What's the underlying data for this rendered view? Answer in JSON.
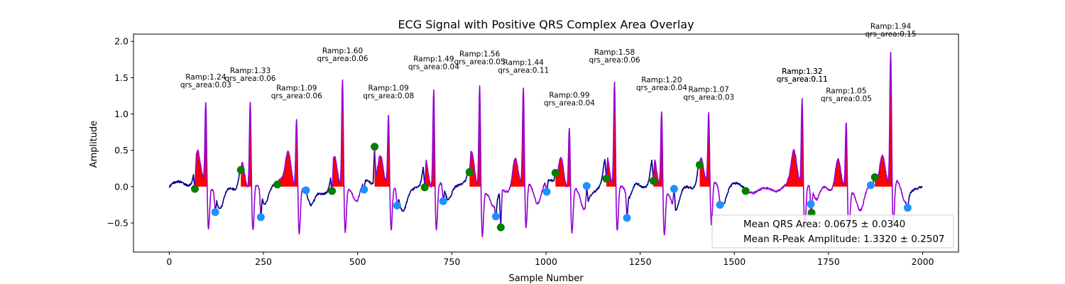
{
  "chart_data": {
    "type": "line",
    "title": "ECG Signal with Positive QRS Complex Area Overlay",
    "xlabel": "Sample Number",
    "ylabel": "Amplitude",
    "xlim": [
      -95,
      2095
    ],
    "ylim": [
      -0.9,
      2.1
    ],
    "x_ticks": [
      0,
      250,
      500,
      750,
      1000,
      1250,
      1500,
      1750,
      2000
    ],
    "y_ticks": [
      -0.5,
      0.0,
      0.5,
      1.0,
      1.5,
      2.0
    ],
    "x_tick_labels": [
      "0",
      "250",
      "500",
      "750",
      "1000",
      "1250",
      "1500",
      "1750",
      "2000"
    ],
    "y_tick_labels": [
      "−0.5",
      "0.0",
      "0.5",
      "1.0",
      "1.5",
      "2.0"
    ],
    "grid": false,
    "colors": {
      "baseline": "#00008b",
      "qrs_segment": "#9400d3",
      "qrs_area": "#ff0000",
      "onset_marker": "#008000",
      "offset_marker": "#1e90ff"
    },
    "series": [
      {
        "name": "ECG baseline",
        "color": "#00008b"
      },
      {
        "name": "QRS segment",
        "color": "#9400d3"
      }
    ],
    "beats": [
      {
        "onset": 68,
        "r_peak": 97,
        "offset": 122,
        "onset_y": -0.03,
        "r_amp": 1.24,
        "offset_y": -0.35,
        "label_ramp": "Ramp:1.24",
        "label_area": "qrs_area:0.03"
      },
      {
        "onset": 190,
        "r_peak": 215,
        "offset": 243,
        "onset_y": 0.23,
        "r_amp": 1.33,
        "offset_y": -0.42,
        "label_ramp": "Ramp:1.33",
        "label_area": "qrs_area:0.06"
      },
      {
        "onset": 287,
        "r_peak": 338,
        "offset": 363,
        "onset_y": 0.03,
        "r_amp": 1.09,
        "offset_y": -0.05,
        "label_ramp": "Ramp:1.09",
        "label_area": "qrs_area:0.06"
      },
      {
        "onset": 432,
        "r_peak": 460,
        "offset": 517,
        "onset_y": -0.06,
        "r_amp": 1.6,
        "offset_y": -0.04,
        "label_ramp": "Ramp:1.60",
        "label_area": "qrs_area:0.06"
      },
      {
        "onset": 545,
        "r_peak": 582,
        "offset": 605,
        "onset_y": 0.55,
        "r_amp": 1.09,
        "offset_y": -0.26,
        "label_ramp": "Ramp:1.09",
        "label_area": "qrs_area:0.08"
      },
      {
        "onset": 678,
        "r_peak": 702,
        "offset": 727,
        "onset_y": -0.01,
        "r_amp": 1.49,
        "offset_y": -0.2,
        "label_ramp": "Ramp:1.49",
        "label_area": "qrs_area:0.04"
      },
      {
        "onset": 797,
        "r_peak": 824,
        "offset": 867,
        "onset_y": 0.2,
        "r_amp": 1.56,
        "offset_y": -0.41,
        "label_ramp": "Ramp:1.56",
        "label_area": "qrs_area:0.05"
      },
      {
        "onset": 880,
        "r_peak": 940,
        "offset": 1002,
        "onset_y": -0.56,
        "r_amp": 1.44,
        "offset_y": -0.07,
        "label_ramp": "Ramp:1.44",
        "label_area": "qrs_area:0.11"
      },
      {
        "onset": 1025,
        "r_peak": 1062,
        "offset": 1108,
        "onset_y": 0.19,
        "r_amp": 0.99,
        "offset_y": 0.01,
        "label_ramp": "Ramp:0.99",
        "label_area": "qrs_area:0.04"
      },
      {
        "onset": 1160,
        "r_peak": 1182,
        "offset": 1215,
        "onset_y": 0.11,
        "r_amp": 1.58,
        "offset_y": -0.43,
        "label_ramp": "Ramp:1.58",
        "label_area": "qrs_area:0.06"
      },
      {
        "onset": 1285,
        "r_peak": 1307,
        "offset": 1340,
        "onset_y": 0.08,
        "r_amp": 1.2,
        "offset_y": -0.03,
        "label_ramp": "Ramp:1.20",
        "label_area": "qrs_area:0.04"
      },
      {
        "onset": 1408,
        "r_peak": 1432,
        "offset": 1462,
        "onset_y": 0.3,
        "r_amp": 1.07,
        "offset_y": -0.25,
        "label_ramp": "Ramp:1.07",
        "label_area": "qrs_area:0.03"
      },
      {
        "onset": 1530,
        "r_peak": 1680,
        "offset": 1703,
        "onset_y": -0.06,
        "r_amp": 1.32,
        "offset_y": -0.24,
        "label_ramp": "Ramp:1.32",
        "label_area": "qrs_area:0.11"
      },
      {
        "onset": 1705,
        "r_peak": 1797,
        "offset": 1862,
        "onset_y": -0.36,
        "r_amp": 1.05,
        "offset_y": 0.02,
        "label_ramp": "Ramp:1.05",
        "label_area": "qrs_area:0.05"
      },
      {
        "onset": 1873,
        "r_peak": 1915,
        "offset": 1960,
        "onset_y": 0.13,
        "r_amp": 1.94,
        "offset_y": -0.29,
        "label_ramp": "Ramp:1.94",
        "label_area": "qrs_area:0.15"
      }
    ],
    "duplicate_label_beat": 12,
    "legend": {
      "placement": "lower right",
      "entries": [
        "Mean QRS Area: 0.0675 ± 0.0340",
        "Mean R-Peak Amplitude: 1.3320 ± 0.2507"
      ]
    }
  }
}
